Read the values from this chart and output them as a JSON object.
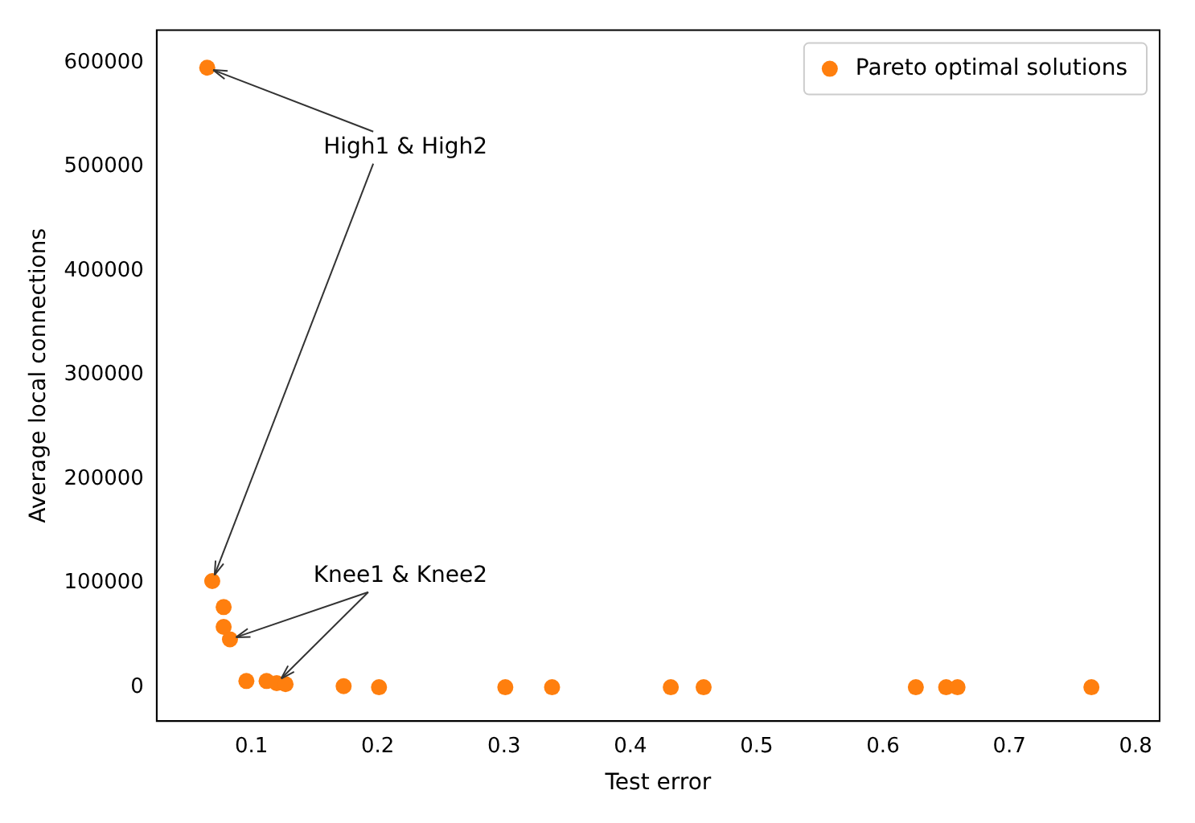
{
  "chart_data": {
    "type": "scatter",
    "xlabel": "Test error",
    "ylabel": "Average local connections",
    "series": [
      {
        "name": "Pareto optimal solutions",
        "color": "#ff7f0e",
        "x": [
          0.065,
          0.069,
          0.078,
          0.078,
          0.083,
          0.096,
          0.112,
          0.12,
          0.127,
          0.173,
          0.201,
          0.301,
          0.338,
          0.432,
          0.458,
          0.626,
          0.65,
          0.659,
          0.765
        ],
        "values": [
          595000,
          102000,
          77000,
          58000,
          46000,
          6000,
          6000,
          4000,
          3000,
          1000,
          0,
          0,
          0,
          0,
          0,
          0,
          0,
          0,
          0
        ]
      }
    ],
    "annotations": [
      {
        "text": "High1 & High2",
        "x": 0.065,
        "y": 595000
      },
      {
        "text": "Knee1 & Knee2",
        "x": 0.083,
        "y": 46000
      }
    ],
    "xlim": [
      0.025,
      0.819
    ],
    "ylim": [
      -32500,
      631000
    ],
    "xticks": [
      0.1,
      0.2,
      0.3,
      0.4,
      0.5,
      0.6,
      0.7,
      0.8
    ],
    "yticks": [
      0,
      100000,
      200000,
      300000,
      400000,
      500000,
      600000
    ],
    "grid": false,
    "legend": "top right",
    "marker": "circle"
  }
}
